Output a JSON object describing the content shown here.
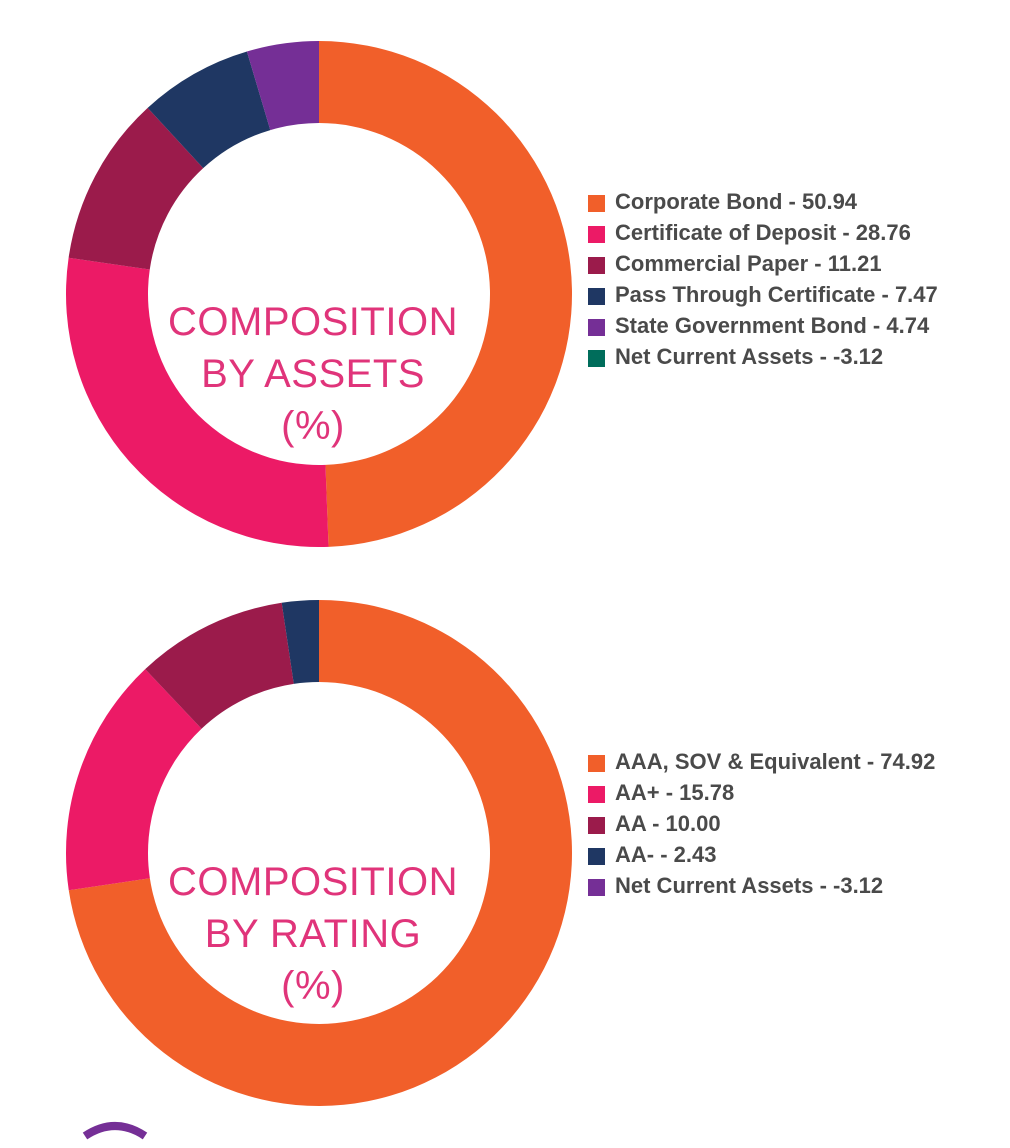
{
  "colors": {
    "orange": "#f15f2a",
    "pink": "#ec1a66",
    "maroon": "#9b1b4b",
    "navy": "#1f3763",
    "purple": "#752f96",
    "teal": "#006d5b",
    "title": "#e0347a"
  },
  "chart_data": [
    {
      "type": "pie",
      "title_lines": [
        "COMPOSITION",
        "BY ASSETS",
        "(%)"
      ],
      "categories": [
        "Corporate Bond",
        "Certificate of Deposit",
        "Commercial Paper",
        "Pass Through Certificate",
        "State Government Bond",
        "Net Current Assets"
      ],
      "values": [
        50.94,
        28.76,
        11.21,
        7.47,
        4.74,
        -3.12
      ],
      "legend_labels": [
        "Corporate Bond - 50.94",
        "Certificate of Deposit - 28.76",
        "Commercial Paper - 11.21",
        "Pass Through Certificate - 7.47",
        "State Government Bond - 4.74",
        "Net Current Assets - -3.12"
      ],
      "colors": [
        "#f15f2a",
        "#ec1a66",
        "#9b1b4b",
        "#1f3763",
        "#752f96",
        "#006d5b"
      ],
      "legend_position": "right"
    },
    {
      "type": "pie",
      "title_lines": [
        "COMPOSITION",
        "BY RATING",
        "(%)"
      ],
      "categories": [
        "AAA, SOV & Equivalent",
        "AA+",
        "AA",
        "AA-",
        "Net Current Assets"
      ],
      "values": [
        74.92,
        15.78,
        10.0,
        2.43,
        -3.12
      ],
      "legend_labels": [
        "AAA, SOV & Equivalent - 74.92",
        "AA+ - 15.78",
        "AA - 10.00",
        "AA- - 2.43",
        "Net Current Assets - -3.12"
      ],
      "colors": [
        "#f15f2a",
        "#ec1a66",
        "#9b1b4b",
        "#1f3763",
        "#752f96"
      ],
      "legend_position": "right"
    }
  ]
}
